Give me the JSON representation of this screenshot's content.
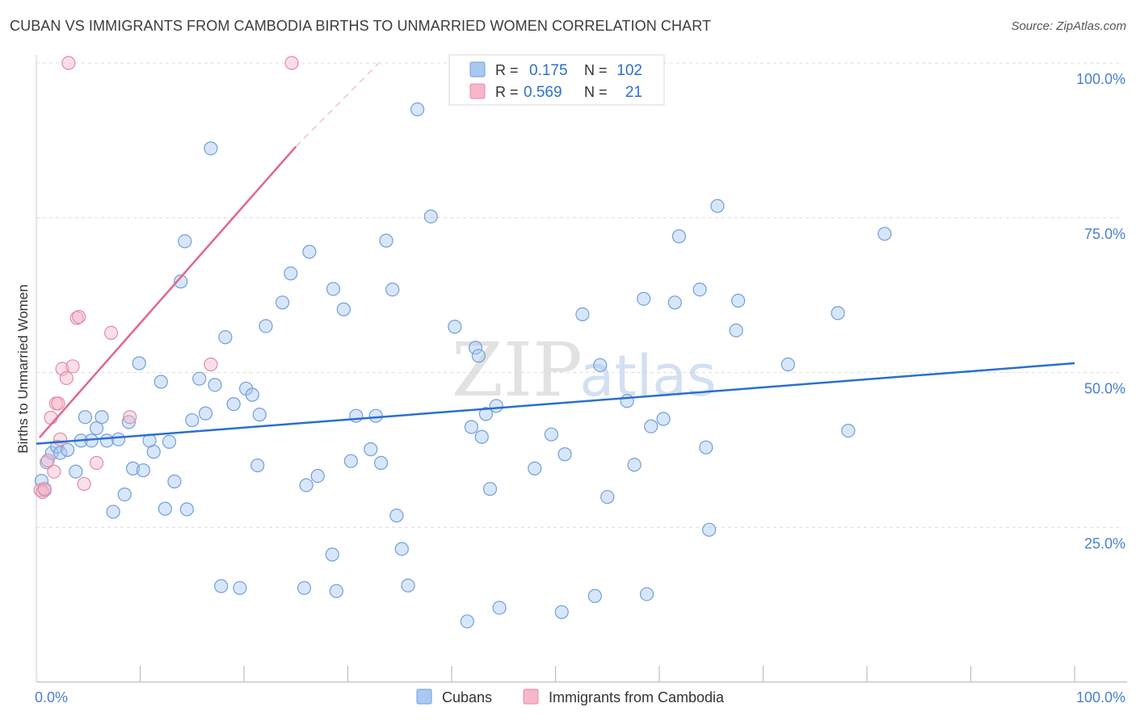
{
  "title": "CUBAN VS IMMIGRANTS FROM CAMBODIA BIRTHS TO UNMARRIED WOMEN CORRELATION CHART",
  "source": "Source: ZipAtlas.com",
  "watermark": {
    "zip": "ZIP",
    "atlas": "atlas"
  },
  "legend": {
    "rows": [
      {
        "r_label": "R =",
        "r_value": "0.175",
        "n_label": "N =",
        "n_value": "102",
        "color": "#a9c8f2"
      },
      {
        "r_label": "R =",
        "r_value": "0.569",
        "n_label": "N =",
        "n_value": "21",
        "color": "#f6b7c8"
      }
    ]
  },
  "bottom_legend": [
    {
      "label": "Cubans",
      "color": "#a9c8f2"
    },
    {
      "label": "Immigrants from Cambodia",
      "color": "#f6b7c8"
    }
  ],
  "chart_data": {
    "type": "scatter",
    "title": "CUBAN VS IMMIGRANTS FROM CAMBODIA BIRTHS TO UNMARRIED WOMEN CORRELATION CHART",
    "ylabel": "Births to Unmarried Women",
    "xlabel": "",
    "xlim": [
      0,
      100
    ],
    "ylim": [
      0,
      100
    ],
    "x_tick_labels": [
      "0.0%",
      "100.0%"
    ],
    "y_tick_labels": [
      "25.0%",
      "50.0%",
      "75.0%",
      "100.0%"
    ],
    "y_ticks": [
      25,
      50,
      75,
      100
    ],
    "grid": true,
    "legend_position": "top-center",
    "series": [
      {
        "name": "Cubans",
        "color": "#a9c8f2",
        "stroke": "#6f9fdc",
        "trend_color": "#2a6fd1",
        "trend": {
          "x": [
            0,
            100
          ],
          "y": [
            38.5,
            51.5
          ]
        },
        "points": [
          [
            0.5,
            32.5
          ],
          [
            0.8,
            31.0
          ],
          [
            1.0,
            35.5
          ],
          [
            1.5,
            37.0
          ],
          [
            2.0,
            38.0
          ],
          [
            2.3,
            37.0
          ],
          [
            3.0,
            37.5
          ],
          [
            3.8,
            34.0
          ],
          [
            4.3,
            39.0
          ],
          [
            4.7,
            42.8
          ],
          [
            5.3,
            39.0
          ],
          [
            5.8,
            41.0
          ],
          [
            6.3,
            42.8
          ],
          [
            6.8,
            39.0
          ],
          [
            7.4,
            27.5
          ],
          [
            7.9,
            39.2
          ],
          [
            8.5,
            30.3
          ],
          [
            8.9,
            42.0
          ],
          [
            9.3,
            34.5
          ],
          [
            9.9,
            51.5
          ],
          [
            10.3,
            34.2
          ],
          [
            10.9,
            39.0
          ],
          [
            11.3,
            37.2
          ],
          [
            12.0,
            48.5
          ],
          [
            12.4,
            28.0
          ],
          [
            12.8,
            38.8
          ],
          [
            13.3,
            32.4
          ],
          [
            13.9,
            64.7
          ],
          [
            14.3,
            71.2
          ],
          [
            14.5,
            27.9
          ],
          [
            15.0,
            42.3
          ],
          [
            15.7,
            49.0
          ],
          [
            16.3,
            43.4
          ],
          [
            16.8,
            86.2
          ],
          [
            17.2,
            48.0
          ],
          [
            17.8,
            15.5
          ],
          [
            18.2,
            55.7
          ],
          [
            19.0,
            44.9
          ],
          [
            19.6,
            15.2
          ],
          [
            20.2,
            47.4
          ],
          [
            20.8,
            46.4
          ],
          [
            21.3,
            35.0
          ],
          [
            21.5,
            43.2
          ],
          [
            22.1,
            57.5
          ],
          [
            23.7,
            61.3
          ],
          [
            24.5,
            66.0
          ],
          [
            25.8,
            15.2
          ],
          [
            26.0,
            31.8
          ],
          [
            26.3,
            69.5
          ],
          [
            27.1,
            33.3
          ],
          [
            28.5,
            20.6
          ],
          [
            28.6,
            63.5
          ],
          [
            28.9,
            14.7
          ],
          [
            29.6,
            60.2
          ],
          [
            30.3,
            35.7
          ],
          [
            30.8,
            43.0
          ],
          [
            32.2,
            37.6
          ],
          [
            32.7,
            43.0
          ],
          [
            33.2,
            35.4
          ],
          [
            33.7,
            71.3
          ],
          [
            34.3,
            63.4
          ],
          [
            34.7,
            26.9
          ],
          [
            35.2,
            21.5
          ],
          [
            35.8,
            15.6
          ],
          [
            36.7,
            92.5
          ],
          [
            38.0,
            75.2
          ],
          [
            40.3,
            57.4
          ],
          [
            41.5,
            9.8
          ],
          [
            41.9,
            41.2
          ],
          [
            42.3,
            54.0
          ],
          [
            42.6,
            52.7
          ],
          [
            42.9,
            39.6
          ],
          [
            43.3,
            43.3
          ],
          [
            43.7,
            31.2
          ],
          [
            44.3,
            44.6
          ],
          [
            44.6,
            12.0
          ],
          [
            48.0,
            34.5
          ],
          [
            49.6,
            40.0
          ],
          [
            50.6,
            11.3
          ],
          [
            50.9,
            36.8
          ],
          [
            52.6,
            59.4
          ],
          [
            53.8,
            13.9
          ],
          [
            54.3,
            51.2
          ],
          [
            55.0,
            29.9
          ],
          [
            56.9,
            45.4
          ],
          [
            57.6,
            35.1
          ],
          [
            58.5,
            61.9
          ],
          [
            58.8,
            14.2
          ],
          [
            59.2,
            41.3
          ],
          [
            60.4,
            42.5
          ],
          [
            61.5,
            61.3
          ],
          [
            61.9,
            72.0
          ],
          [
            63.9,
            63.4
          ],
          [
            64.5,
            37.9
          ],
          [
            64.8,
            24.6
          ],
          [
            65.6,
            76.9
          ],
          [
            67.4,
            56.8
          ],
          [
            67.6,
            61.6
          ],
          [
            72.4,
            51.3
          ],
          [
            77.2,
            59.6
          ],
          [
            78.2,
            40.6
          ],
          [
            81.7,
            72.4
          ]
        ]
      },
      {
        "name": "Immigrants from Cambodia",
        "color": "#f6b7c8",
        "stroke": "#e58aa5",
        "trend_color": "#e0668e",
        "trend": {
          "x": [
            0.3,
            25.0
          ],
          "y": [
            39.5,
            86.5
          ]
        },
        "trend_dashed": {
          "x": [
            25.0,
            33.0
          ],
          "y": [
            86.5,
            100.0
          ]
        },
        "points": [
          [
            0.4,
            31.0
          ],
          [
            0.6,
            30.7
          ],
          [
            0.8,
            31.2
          ],
          [
            1.1,
            35.8
          ],
          [
            1.4,
            42.7
          ],
          [
            1.7,
            34.0
          ],
          [
            1.9,
            45.0
          ],
          [
            2.1,
            45.0
          ],
          [
            2.3,
            39.2
          ],
          [
            2.5,
            50.6
          ],
          [
            2.9,
            49.1
          ],
          [
            3.5,
            51.0
          ],
          [
            3.1,
            100.0
          ],
          [
            3.9,
            58.8
          ],
          [
            4.1,
            59.0
          ],
          [
            4.6,
            32.0
          ],
          [
            5.8,
            35.4
          ],
          [
            7.2,
            56.4
          ],
          [
            9.0,
            42.8
          ],
          [
            16.8,
            51.3
          ],
          [
            24.6,
            100.0
          ]
        ]
      }
    ]
  }
}
